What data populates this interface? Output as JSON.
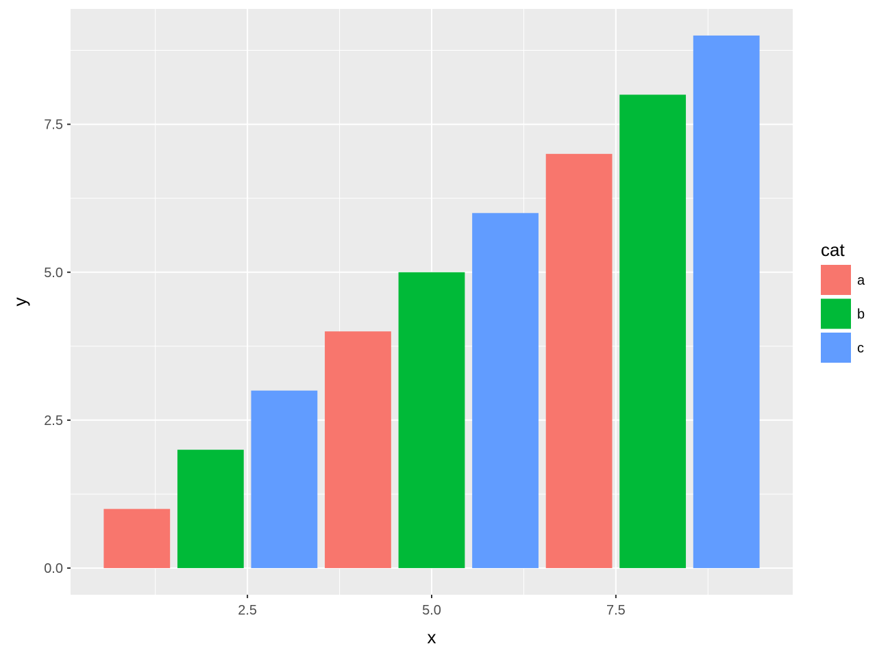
{
  "chart_data": {
    "type": "bar",
    "x": [
      1,
      2,
      3,
      4,
      5,
      6,
      7,
      8,
      9
    ],
    "values": [
      1,
      2,
      3,
      4,
      5,
      6,
      7,
      8,
      9
    ],
    "fill_category": [
      "a",
      "b",
      "c",
      "a",
      "b",
      "c",
      "a",
      "b",
      "c"
    ],
    "xlabel": "x",
    "ylabel": "y",
    "xlim": [
      0.1,
      9.9
    ],
    "ylim": [
      -0.45,
      9.45
    ],
    "x_ticks": [
      2.5,
      5.0,
      7.5
    ],
    "x_tick_labels": [
      "2.5",
      "5.0",
      "7.5"
    ],
    "y_ticks": [
      0,
      2.5,
      5.0,
      7.5
    ],
    "y_tick_labels": [
      "0.0",
      "2.5",
      "5.0",
      "7.5"
    ],
    "grid": true,
    "panel_background": "#EBEBEB",
    "legend": {
      "title": "cat",
      "placement": "right",
      "entries": [
        {
          "label": "a",
          "color": "#F8766D"
        },
        {
          "label": "b",
          "color": "#00BA38"
        },
        {
          "label": "c",
          "color": "#619CFF"
        }
      ]
    }
  }
}
